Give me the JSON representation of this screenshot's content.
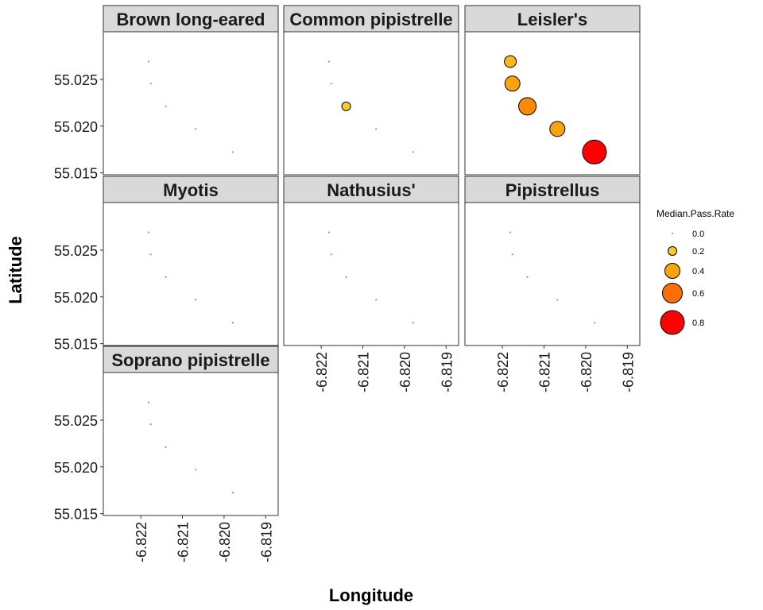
{
  "chart_data": {
    "type": "scatter",
    "xlabel": "Longitude",
    "ylabel": "Latitude",
    "xlim": [
      -6.8229,
      -6.8187
    ],
    "ylim": [
      55.0148,
      55.0301
    ],
    "x_ticks": [
      -6.822,
      -6.821,
      -6.82,
      -6.819
    ],
    "x_tick_labels": [
      "-6.822",
      "-6.821",
      "-6.820",
      "-6.819"
    ],
    "y_ticks": [
      55.015,
      55.02,
      55.025
    ],
    "y_tick_labels": [
      "55.015",
      "55.020",
      "55.025"
    ],
    "grid": false,
    "sites": [
      {
        "x": -6.82181,
        "y": 55.02691
      },
      {
        "x": -6.82176,
        "y": 55.02455
      },
      {
        "x": -6.8214,
        "y": 55.02212
      },
      {
        "x": -6.82068,
        "y": 55.0197
      },
      {
        "x": -6.81979,
        "y": 55.01723
      }
    ],
    "facets": [
      {
        "name": "Brown long-eared",
        "values": [
          0,
          0,
          0,
          0,
          0
        ]
      },
      {
        "name": "Common pipistrelle",
        "values": [
          0,
          0,
          0.2,
          0,
          0
        ]
      },
      {
        "name": "Leisler's",
        "values": [
          0.3,
          0.4,
          0.5,
          0.4,
          0.8
        ]
      },
      {
        "name": "Myotis",
        "values": [
          0,
          0,
          0,
          0,
          0
        ]
      },
      {
        "name": "Nathusius'",
        "values": [
          0,
          0,
          0,
          0,
          0
        ]
      },
      {
        "name": "Pipistrellus",
        "values": [
          0,
          0,
          0,
          0,
          0
        ]
      },
      {
        "name": "Soprano pipistrelle",
        "values": [
          0,
          0,
          0,
          0,
          0
        ]
      }
    ],
    "legend": {
      "title": "Median.Pass.Rate",
      "position": "right",
      "entries": [
        {
          "value": 0.0,
          "label": "0.0",
          "color": "#ffe019"
        },
        {
          "value": 0.2,
          "label": "0.2",
          "color": "#ffcb1f"
        },
        {
          "value": 0.4,
          "label": "0.4",
          "color": "#ffa30a"
        },
        {
          "value": 0.6,
          "label": "0.6",
          "color": "#ff6f00"
        },
        {
          "value": 0.8,
          "label": "0.8",
          "color": "#ff0000"
        }
      ]
    },
    "colors": {
      "panel_border": "#333333",
      "strip_fill": "#d9d9d9",
      "point_stroke": "#000000"
    }
  }
}
